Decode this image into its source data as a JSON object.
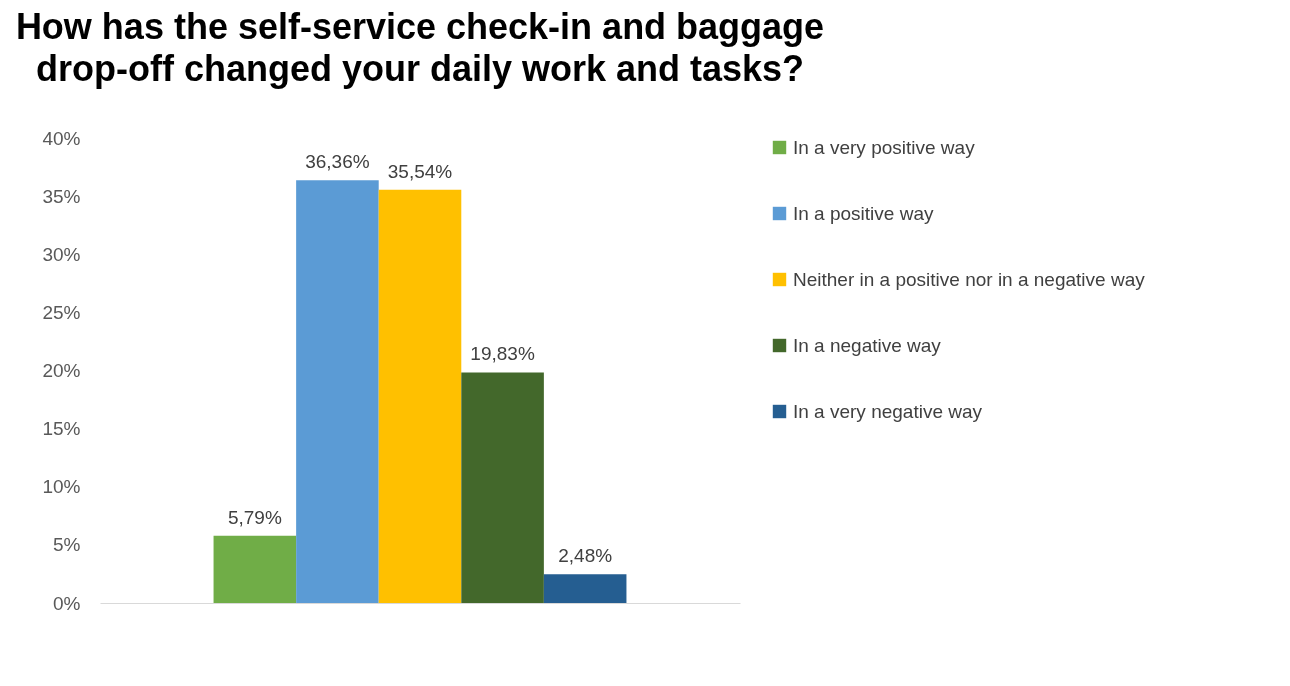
{
  "chart_data": {
    "type": "bar",
    "title": "How has the self-service check-in and baggage drop-off changed your daily work and tasks?",
    "categories": [
      null
    ],
    "series": [
      {
        "name": "In a  very positive way",
        "color": "#70ad47",
        "values": [
          5.79
        ],
        "value_labels": [
          "5,79%"
        ]
      },
      {
        "name": "In a positive way",
        "color": "#5b9bd5",
        "values": [
          36.36
        ],
        "value_labels": [
          "36,36%"
        ]
      },
      {
        "name": "Neither in a positive nor in a negative way",
        "color": "#ffc000",
        "values": [
          35.54
        ],
        "value_labels": [
          "35,54%"
        ]
      },
      {
        "name": "In a negative way",
        "color": "#43682b",
        "values": [
          19.83
        ],
        "value_labels": [
          "19,83%"
        ]
      },
      {
        "name": "In a very negative way",
        "color": "#255e91",
        "values": [
          2.48
        ],
        "value_labels": [
          "2,48%"
        ]
      }
    ],
    "ylim": [
      0,
      40
    ],
    "yticks": [
      {
        "value": 0,
        "label": "0%"
      },
      {
        "value": 5,
        "label": "5%"
      },
      {
        "value": 10,
        "label": "10%"
      },
      {
        "value": 15,
        "label": "15%"
      },
      {
        "value": 20,
        "label": "20%"
      },
      {
        "value": 25,
        "label": "25%"
      },
      {
        "value": 30,
        "label": "30%"
      },
      {
        "value": 35,
        "label": "35%"
      },
      {
        "value": 40,
        "label": "40%"
      }
    ],
    "grid": false,
    "legend": "right"
  }
}
